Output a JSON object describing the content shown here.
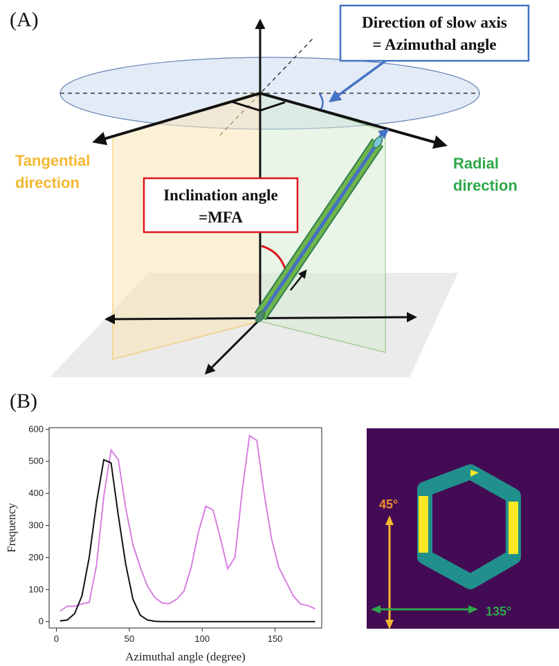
{
  "panel_a": {
    "label": "(A)",
    "slow_axis_box": {
      "line1": "Direction of slow axis",
      "line2": "= Azimuthal angle"
    },
    "inclination_box": {
      "line1": "Inclination angle",
      "line2": "=MFA"
    },
    "tangential": {
      "line1": "Tangential",
      "line2": "direction",
      "color": "#f5b731"
    },
    "radial": {
      "line1": "Radial",
      "line2": "direction",
      "color": "#2ea84a"
    }
  },
  "panel_b": {
    "label": "(B)",
    "angle_45": {
      "text": "45°",
      "color": "#f08a30"
    },
    "angle_135": {
      "text": "135°",
      "color": "#2ea84a"
    }
  },
  "chart_data": {
    "type": "line",
    "xlabel": "Azimuthal angle (degree)",
    "ylabel": "Frequency",
    "xlim": [
      -5,
      182
    ],
    "ylim": [
      -20,
      605
    ],
    "xticks": [
      0,
      50,
      100,
      150
    ],
    "yticks": [
      0,
      100,
      200,
      300,
      400,
      500,
      600
    ],
    "series": [
      {
        "color": "#d67fe0",
        "x": [
          2.5,
          7.5,
          12.5,
          17.5,
          22.5,
          27.5,
          32.5,
          37.5,
          42.5,
          47.5,
          52.5,
          57.5,
          62.5,
          67.5,
          72.5,
          77.5,
          82.5,
          87.5,
          92.5,
          97.5,
          102.5,
          107.5,
          112.5,
          117.5,
          122.5,
          127.5,
          132.5,
          137.5,
          142.5,
          147.5,
          152.5,
          157.5,
          162.5,
          167.5,
          172.5,
          177.5
        ],
        "values": [
          33,
          48,
          48,
          55,
          60,
          175,
          390,
          535,
          505,
          355,
          240,
          170,
          110,
          75,
          58,
          56,
          70,
          95,
          170,
          280,
          360,
          348,
          260,
          165,
          200,
          410,
          580,
          565,
          400,
          260,
          170,
          125,
          80,
          55,
          50,
          40
        ]
      },
      {
        "color": "#111111",
        "x": [
          2.5,
          7.5,
          12.5,
          17.5,
          22.5,
          27.5,
          32.5,
          37.5,
          42.5,
          47.5,
          52.5,
          57.5,
          62.5,
          67.5,
          72.5,
          77.5,
          82.5,
          87.5,
          92.5,
          97.5,
          102.5,
          107.5,
          112.5,
          117.5,
          122.5,
          127.5,
          132.5,
          137.5,
          142.5,
          147.5,
          152.5,
          157.5,
          162.5,
          167.5,
          172.5,
          177.5
        ],
        "values": [
          2,
          5,
          25,
          80,
          200,
          370,
          505,
          495,
          330,
          180,
          70,
          20,
          5,
          1,
          0,
          0,
          0,
          0,
          0,
          0,
          0,
          0,
          0,
          0,
          0,
          0,
          0,
          0,
          0,
          0,
          0,
          0,
          0,
          0,
          0,
          0
        ]
      }
    ]
  }
}
